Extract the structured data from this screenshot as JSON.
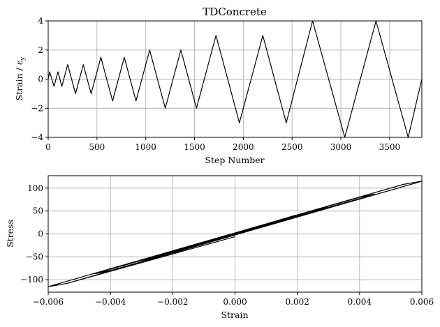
{
  "chart_data": [
    {
      "type": "line",
      "title": "TDConcrete",
      "xlabel": "Step Number",
      "ylabel": "Strain / ε",
      "ylabel_sub": "y",
      "xlim": [
        0,
        3830
      ],
      "ylim": [
        -4,
        4
      ],
      "xticks": [
        0,
        500,
        1000,
        1500,
        2000,
        2500,
        3000,
        3500
      ],
      "yticks": [
        -4,
        -2,
        0,
        2,
        4
      ],
      "xtick_labels": [
        "0",
        "500",
        "1000",
        "1500",
        "2000",
        "2500",
        "3000",
        "3500"
      ],
      "ytick_labels": [
        "−4",
        "−2",
        "0",
        "2",
        "4"
      ],
      "grid": true,
      "series": [
        {
          "color": "#000000",
          "x": [
            0,
            15,
            60,
            100,
            140,
            200,
            280,
            360,
            440,
            540,
            660,
            780,
            900,
            1040,
            1200,
            1360,
            1520,
            1720,
            1960,
            2200,
            2440,
            2710,
            3040,
            3360,
            3690,
            3830
          ],
          "y": [
            0,
            0.5,
            -0.5,
            0.5,
            -0.5,
            1,
            -1,
            1,
            -1,
            1.5,
            -1.5,
            1.5,
            -1.5,
            2,
            -2,
            2,
            -2,
            3,
            -3,
            3,
            -3,
            4,
            -4,
            4,
            -4,
            0
          ]
        }
      ]
    },
    {
      "type": "line",
      "title": "",
      "xlabel": "Strain",
      "ylabel": "Stress",
      "xlim": [
        -0.006,
        0.006
      ],
      "ylim": [
        -127,
        127
      ],
      "xticks": [
        -0.006,
        -0.004,
        -0.002,
        0.0,
        0.002,
        0.004,
        0.006
      ],
      "yticks": [
        -100,
        -50,
        0,
        50,
        100
      ],
      "xtick_labels": [
        "−0.006",
        "−0.004",
        "−0.002",
        "0.000",
        "0.002",
        "0.004",
        "0.006"
      ],
      "ytick_labels": [
        "−100",
        "−50",
        "0",
        "50",
        "100"
      ],
      "grid": true,
      "series": [
        {
          "color": "#000000",
          "x": [
            0,
            0.00075,
            0.0005,
            -0.00075,
            -0.0005,
            0.0015,
            0.0012,
            -0.0015,
            -0.0012,
            0.00225,
            0.0019,
            -0.00225,
            -0.0019,
            0.003,
            0.0026,
            -0.003,
            -0.0026,
            0.0045,
            0.004,
            -0.0045,
            -0.004,
            0.006,
            0.0054,
            -0.006,
            -0.0054,
            0.006,
            0.0054,
            -0.006,
            -0.0054,
            0
          ],
          "y": [
            0,
            15,
            12,
            -15,
            -12,
            30,
            26,
            -30,
            -26,
            44,
            40,
            -44,
            -40,
            58,
            52,
            -58,
            -52,
            87,
            80,
            -87,
            -80,
            115,
            108,
            -115,
            -108,
            115,
            108,
            -115,
            -108,
            -6
          ]
        }
      ]
    }
  ]
}
